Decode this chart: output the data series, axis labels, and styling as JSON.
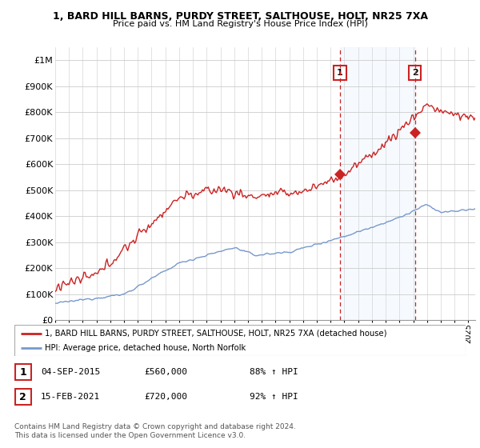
{
  "title1": "1, BARD HILL BARNS, PURDY STREET, SALTHOUSE, HOLT, NR25 7XA",
  "title2": "Price paid vs. HM Land Registry's House Price Index (HPI)",
  "ylabel_ticks": [
    "£0",
    "£100K",
    "£200K",
    "£300K",
    "£400K",
    "£500K",
    "£600K",
    "£700K",
    "£800K",
    "£900K",
    "£1M"
  ],
  "ytick_vals": [
    0,
    100000,
    200000,
    300000,
    400000,
    500000,
    600000,
    700000,
    800000,
    900000,
    1000000
  ],
  "xlim_start": 1995.0,
  "xlim_end": 2025.5,
  "ylim": [
    0,
    1050000
  ],
  "red_color": "#cc2222",
  "blue_color": "#7799cc",
  "marker1_x": 2015.67,
  "marker1_y": 560000,
  "marker2_x": 2021.12,
  "marker2_y": 720000,
  "legend_line1": "1, BARD HILL BARNS, PURDY STREET, SALTHOUSE, HOLT, NR25 7XA (detached house)",
  "legend_line2": "HPI: Average price, detached house, North Norfolk",
  "table_row1": [
    "1",
    "04-SEP-2015",
    "£560,000",
    "88% ↑ HPI"
  ],
  "table_row2": [
    "2",
    "15-FEB-2021",
    "£720,000",
    "92% ↑ HPI"
  ],
  "footnote": "Contains HM Land Registry data © Crown copyright and database right 2024.\nThis data is licensed under the Open Government Licence v3.0.",
  "shaded_color": "#ddeeff",
  "grid_color": "#cccccc"
}
